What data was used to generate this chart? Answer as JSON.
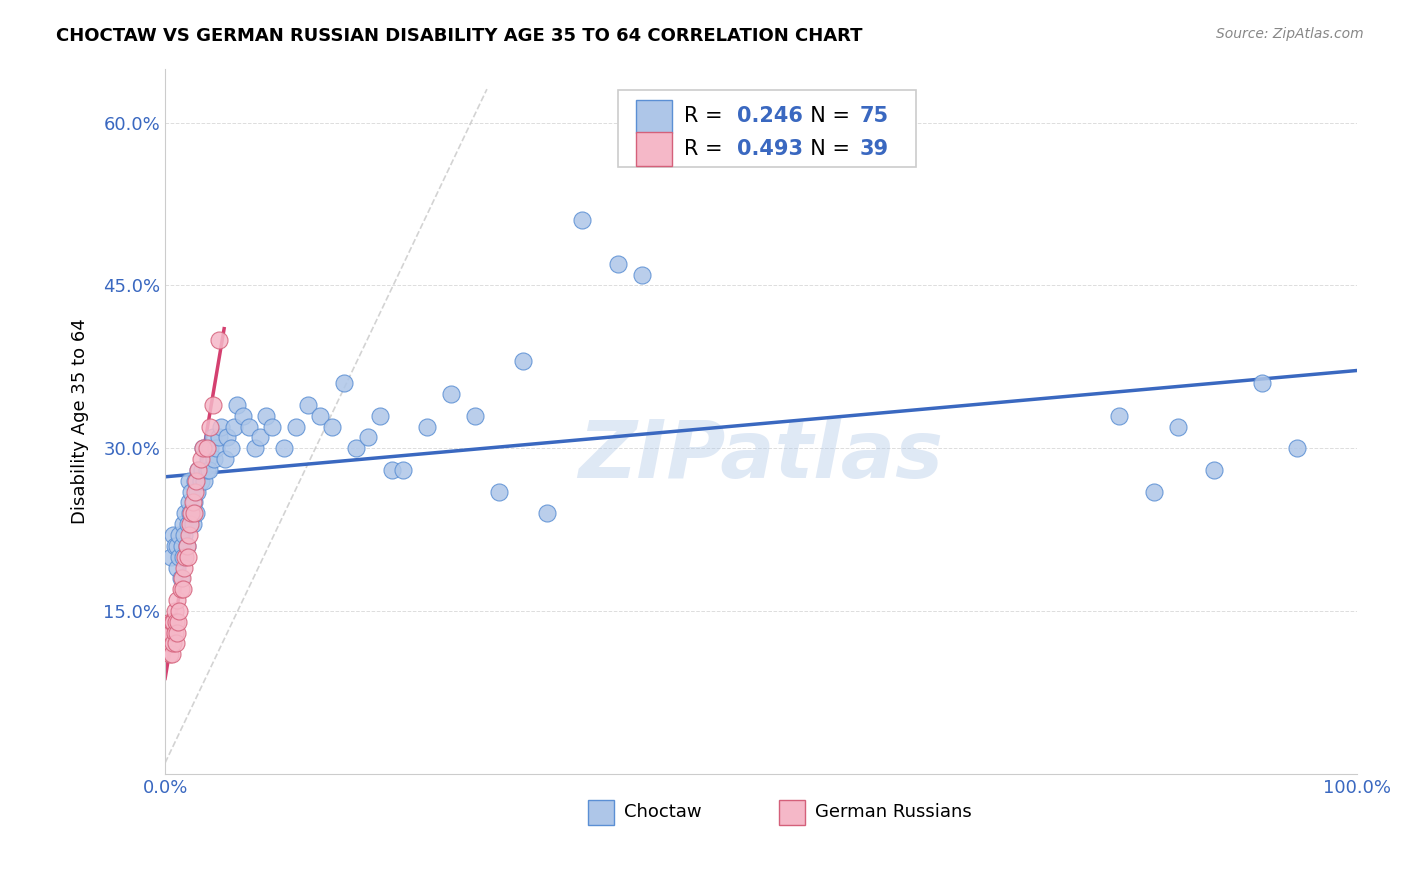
{
  "title": "CHOCTAW VS GERMAN RUSSIAN DISABILITY AGE 35 TO 64 CORRELATION CHART",
  "source": "Source: ZipAtlas.com",
  "ylabel": "Disability Age 35 to 64",
  "xlim": [
    0,
    1.0
  ],
  "ylim": [
    0.0,
    0.65
  ],
  "xticks": [
    0.0,
    0.2,
    0.4,
    0.6,
    0.8,
    1.0
  ],
  "xticklabels": [
    "0.0%",
    "",
    "",
    "",
    "",
    "100.0%"
  ],
  "yticks": [
    0.15,
    0.3,
    0.45,
    0.6
  ],
  "yticklabels": [
    "15.0%",
    "30.0%",
    "45.0%",
    "60.0%"
  ],
  "choctaw_color": "#aec6e8",
  "choctaw_edge": "#5b8fd4",
  "german_russian_color": "#f5b8c8",
  "german_russian_edge": "#d4607a",
  "trend_blue": "#3a68c0",
  "trend_pink": "#d44070",
  "trend_gray_dashed": "#c8c8c8",
  "R_choctaw": "0.246",
  "N_choctaw": "75",
  "R_german": "0.493",
  "N_german": "39",
  "watermark": "ZIPatlas",
  "choctaw_x": [
    0.005,
    0.007,
    0.008,
    0.01,
    0.01,
    0.012,
    0.012,
    0.013,
    0.014,
    0.015,
    0.015,
    0.016,
    0.017,
    0.018,
    0.019,
    0.02,
    0.02,
    0.021,
    0.022,
    0.023,
    0.024,
    0.025,
    0.026,
    0.027,
    0.028,
    0.03,
    0.031,
    0.032,
    0.033,
    0.035,
    0.036,
    0.037,
    0.038,
    0.04,
    0.041,
    0.043,
    0.045,
    0.047,
    0.05,
    0.052,
    0.055,
    0.058,
    0.06,
    0.065,
    0.07,
    0.075,
    0.08,
    0.085,
    0.09,
    0.1,
    0.11,
    0.12,
    0.13,
    0.14,
    0.15,
    0.16,
    0.17,
    0.18,
    0.19,
    0.2,
    0.22,
    0.24,
    0.26,
    0.28,
    0.3,
    0.32,
    0.35,
    0.38,
    0.4,
    0.8,
    0.83,
    0.85,
    0.88,
    0.92,
    0.95
  ],
  "choctaw_y": [
    0.2,
    0.22,
    0.21,
    0.19,
    0.21,
    0.2,
    0.22,
    0.18,
    0.21,
    0.2,
    0.23,
    0.22,
    0.24,
    0.21,
    0.23,
    0.25,
    0.27,
    0.24,
    0.26,
    0.23,
    0.25,
    0.27,
    0.24,
    0.26,
    0.28,
    0.27,
    0.28,
    0.3,
    0.27,
    0.28,
    0.29,
    0.28,
    0.3,
    0.31,
    0.29,
    0.3,
    0.31,
    0.32,
    0.29,
    0.31,
    0.3,
    0.32,
    0.34,
    0.33,
    0.32,
    0.3,
    0.31,
    0.33,
    0.32,
    0.3,
    0.32,
    0.34,
    0.33,
    0.32,
    0.36,
    0.3,
    0.31,
    0.33,
    0.28,
    0.28,
    0.32,
    0.35,
    0.33,
    0.26,
    0.38,
    0.24,
    0.51,
    0.47,
    0.46,
    0.33,
    0.26,
    0.32,
    0.28,
    0.36,
    0.3
  ],
  "german_x": [
    0.002,
    0.003,
    0.004,
    0.004,
    0.005,
    0.005,
    0.006,
    0.006,
    0.007,
    0.007,
    0.008,
    0.008,
    0.009,
    0.009,
    0.01,
    0.01,
    0.011,
    0.012,
    0.013,
    0.014,
    0.015,
    0.016,
    0.017,
    0.018,
    0.019,
    0.02,
    0.021,
    0.022,
    0.023,
    0.024,
    0.025,
    0.026,
    0.028,
    0.03,
    0.032,
    0.035,
    0.038,
    0.04,
    0.045
  ],
  "german_y": [
    0.12,
    0.13,
    0.11,
    0.14,
    0.12,
    0.13,
    0.11,
    0.14,
    0.12,
    0.14,
    0.13,
    0.15,
    0.12,
    0.14,
    0.13,
    0.16,
    0.14,
    0.15,
    0.17,
    0.18,
    0.17,
    0.19,
    0.2,
    0.21,
    0.2,
    0.22,
    0.23,
    0.24,
    0.25,
    0.24,
    0.26,
    0.27,
    0.28,
    0.29,
    0.3,
    0.3,
    0.32,
    0.34,
    0.4
  ]
}
